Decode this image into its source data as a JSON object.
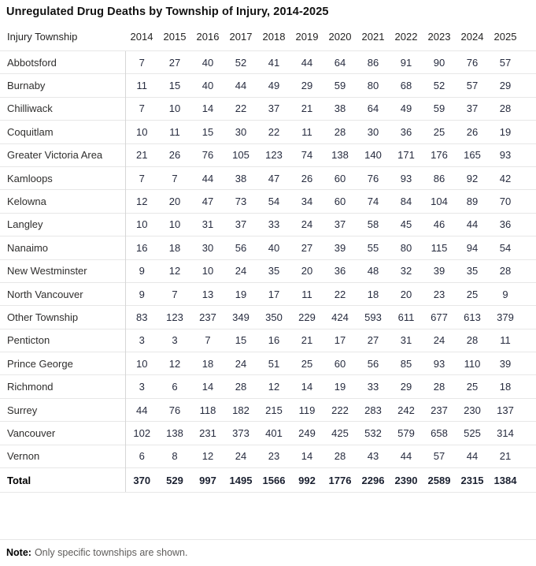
{
  "title": "Unregulated Drug Deaths by Township of Injury, 2014-2025",
  "note": {
    "label": "Note:",
    "text": "Only specific townships are shown."
  },
  "colors": {
    "title_text": "#111111",
    "header_text": "#252423",
    "township_text": "#2f2e2d",
    "value_text": "#272c3f",
    "total_text": "#1a2030",
    "row_border": "#e7e7e7",
    "column_divider": "#d6d6d6",
    "note_text": "#5f5d5b"
  },
  "chart_data": {
    "type": "table",
    "title": "Unregulated Drug Deaths by Township of Injury, 2014-2025",
    "columns": [
      "Injury Township",
      "2014",
      "2015",
      "2016",
      "2017",
      "2018",
      "2019",
      "2020",
      "2021",
      "2022",
      "2023",
      "2024",
      "2025"
    ],
    "rows": [
      [
        "Abbotsford",
        7,
        27,
        40,
        52,
        41,
        44,
        64,
        86,
        91,
        90,
        76,
        57
      ],
      [
        "Burnaby",
        11,
        15,
        40,
        44,
        49,
        29,
        59,
        80,
        68,
        52,
        57,
        29
      ],
      [
        "Chilliwack",
        7,
        10,
        14,
        22,
        37,
        21,
        38,
        64,
        49,
        59,
        37,
        28
      ],
      [
        "Coquitlam",
        10,
        11,
        15,
        30,
        22,
        11,
        28,
        30,
        36,
        25,
        26,
        19
      ],
      [
        "Greater Victoria Area",
        21,
        26,
        76,
        105,
        123,
        74,
        138,
        140,
        171,
        176,
        165,
        93
      ],
      [
        "Kamloops",
        7,
        7,
        44,
        38,
        47,
        26,
        60,
        76,
        93,
        86,
        92,
        42
      ],
      [
        "Kelowna",
        12,
        20,
        47,
        73,
        54,
        34,
        60,
        74,
        84,
        104,
        89,
        70
      ],
      [
        "Langley",
        10,
        10,
        31,
        37,
        33,
        24,
        37,
        58,
        45,
        46,
        44,
        36
      ],
      [
        "Nanaimo",
        16,
        18,
        30,
        56,
        40,
        27,
        39,
        55,
        80,
        115,
        94,
        54
      ],
      [
        "New Westminster",
        9,
        12,
        10,
        24,
        35,
        20,
        36,
        48,
        32,
        39,
        35,
        28
      ],
      [
        "North Vancouver",
        9,
        7,
        13,
        19,
        17,
        11,
        22,
        18,
        20,
        23,
        25,
        9
      ],
      [
        "Other Township",
        83,
        123,
        237,
        349,
        350,
        229,
        424,
        593,
        611,
        677,
        613,
        379
      ],
      [
        "Penticton",
        3,
        3,
        7,
        15,
        16,
        21,
        17,
        27,
        31,
        24,
        28,
        11
      ],
      [
        "Prince George",
        10,
        12,
        18,
        24,
        51,
        25,
        60,
        56,
        85,
        93,
        110,
        39
      ],
      [
        "Richmond",
        3,
        6,
        14,
        28,
        12,
        14,
        19,
        33,
        29,
        28,
        25,
        18
      ],
      [
        "Surrey",
        44,
        76,
        118,
        182,
        215,
        119,
        222,
        283,
        242,
        237,
        230,
        137
      ],
      [
        "Vancouver",
        102,
        138,
        231,
        373,
        401,
        249,
        425,
        532,
        579,
        658,
        525,
        314
      ],
      [
        "Vernon",
        6,
        8,
        12,
        24,
        23,
        14,
        28,
        43,
        44,
        57,
        44,
        21
      ]
    ],
    "total_row": [
      "Total",
      370,
      529,
      997,
      1495,
      1566,
      992,
      1776,
      2296,
      2390,
      2589,
      2315,
      1384
    ]
  }
}
